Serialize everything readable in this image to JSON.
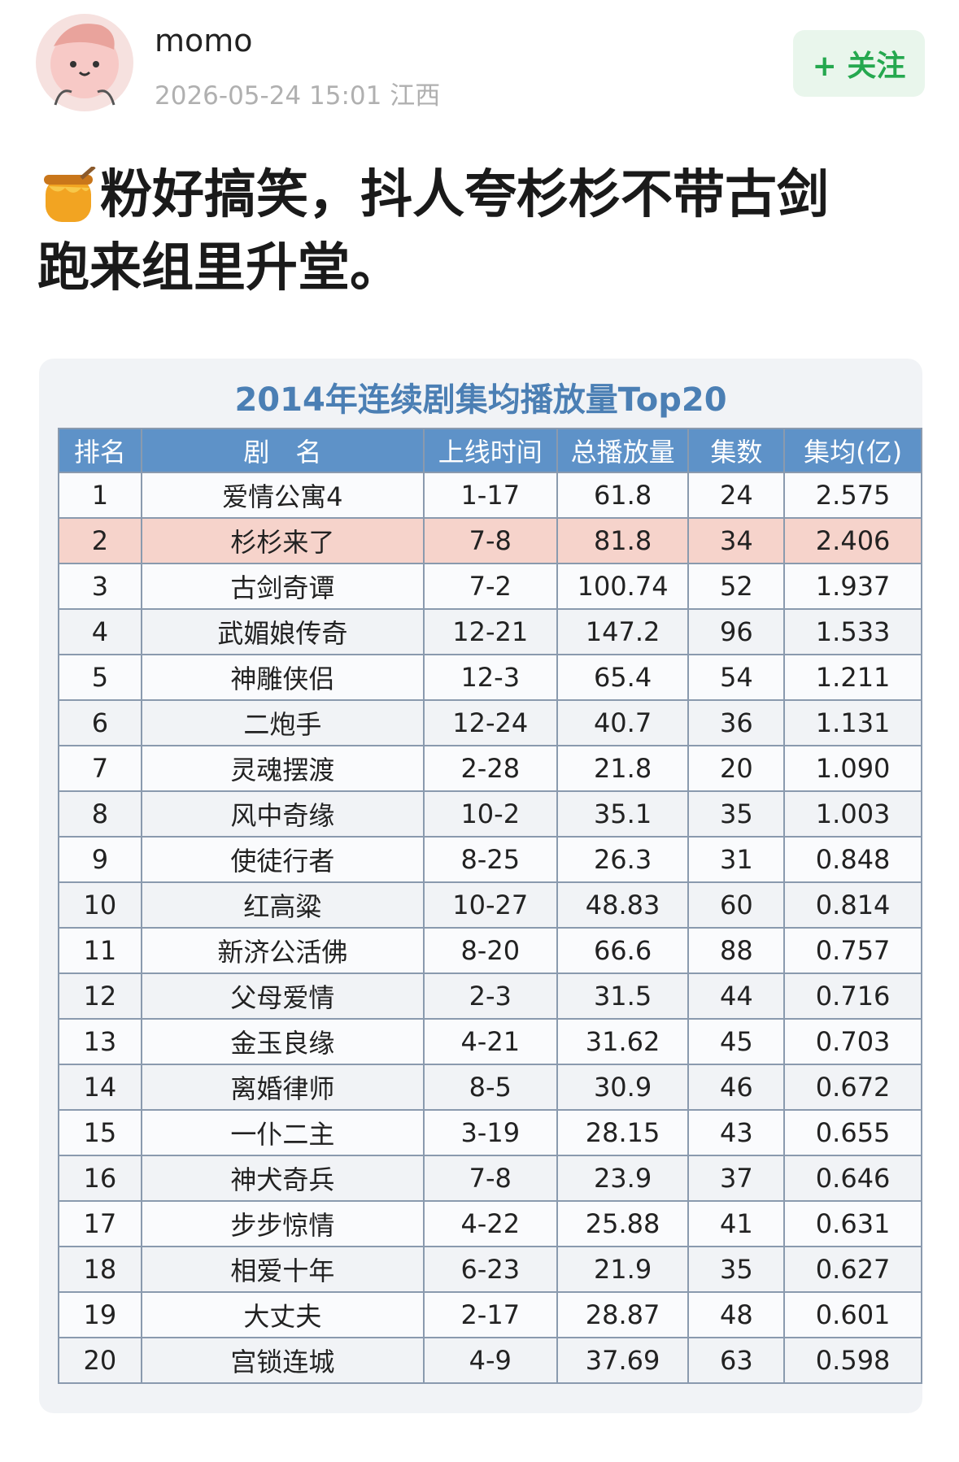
{
  "header": {
    "username": "momo",
    "timestamp": "2026-05-24 15:01",
    "location": "江西",
    "follow_button": "+ 关注"
  },
  "post": {
    "lines": [
      "粉好搞笑，抖人夸杉杉不带古剑",
      "跑来组里升堂。"
    ]
  },
  "table": {
    "title": "2014年连续剧集均播放量Top20",
    "columns": [
      "排名",
      "剧　名",
      "上线时间",
      "总播放量",
      "集数",
      "集均(亿)"
    ],
    "rows": [
      [
        "1",
        "爱情公寓4",
        "1-17",
        "61.8",
        "24",
        "2.575"
      ],
      [
        "2",
        "杉杉来了",
        "7-8",
        "81.8",
        "34",
        "2.406"
      ],
      [
        "3",
        "古剑奇谭",
        "7-2",
        "100.74",
        "52",
        "1.937"
      ],
      [
        "4",
        "武媚娘传奇",
        "12-21",
        "147.2",
        "96",
        "1.533"
      ],
      [
        "5",
        "神雕侠侣",
        "12-3",
        "65.4",
        "54",
        "1.211"
      ],
      [
        "6",
        "二炮手",
        "12-24",
        "40.7",
        "36",
        "1.131"
      ],
      [
        "7",
        "灵魂摆渡",
        "2-28",
        "21.8",
        "20",
        "1.090"
      ],
      [
        "8",
        "风中奇缘",
        "10-2",
        "35.1",
        "35",
        "1.003"
      ],
      [
        "9",
        "使徒行者",
        "8-25",
        "26.3",
        "31",
        "0.848"
      ],
      [
        "10",
        "红高粱",
        "10-27",
        "48.83",
        "60",
        "0.814"
      ],
      [
        "11",
        "新济公活佛",
        "8-20",
        "66.6",
        "88",
        "0.757"
      ],
      [
        "12",
        "父母爱情",
        "2-3",
        "31.5",
        "44",
        "0.716"
      ],
      [
        "13",
        "金玉良缘",
        "4-21",
        "31.62",
        "45",
        "0.703"
      ],
      [
        "14",
        "离婚律师",
        "8-5",
        "30.9",
        "46",
        "0.672"
      ],
      [
        "15",
        "一仆二主",
        "3-19",
        "28.15",
        "43",
        "0.655"
      ],
      [
        "16",
        "神犬奇兵",
        "7-8",
        "23.9",
        "37",
        "0.646"
      ],
      [
        "17",
        "步步惊情",
        "4-22",
        "25.88",
        "41",
        "0.631"
      ],
      [
        "18",
        "相爱十年",
        "6-23",
        "21.9",
        "35",
        "0.627"
      ],
      [
        "19",
        "大丈夫",
        "2-17",
        "28.87",
        "48",
        "0.601"
      ],
      [
        "20",
        "宫锁连城",
        "4-9",
        "37.69",
        "63",
        "0.598"
      ]
    ]
  }
}
